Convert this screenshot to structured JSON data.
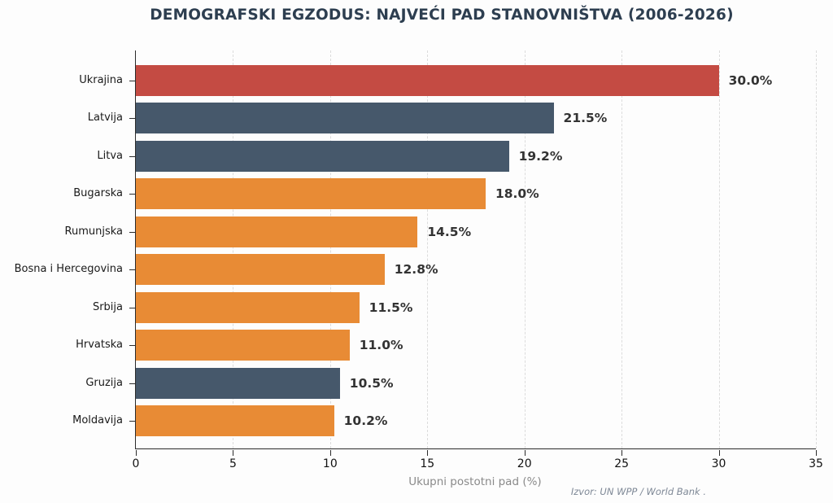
{
  "title": "DEMOGRAFSKI EGZODUS: NAJVEĆI PAD STANOVNIŠTVA (2006-2026)",
  "source_note": "Izvor: UN WPP / World Bank .",
  "chart_data": {
    "type": "bar",
    "orientation": "horizontal",
    "title": "DEMOGRAFSKI EGZODUS: NAJVEĆI PAD STANOVNIŠTVA (2006-2026)",
    "categories": [
      "Ukrajina",
      "Latvija",
      "Litva",
      "Bugarska",
      "Rumunjska",
      "Bosna i Hercegovina",
      "Srbija",
      "Hrvatska",
      "Gruzija",
      "Moldavija"
    ],
    "values": [
      30.0,
      21.5,
      19.2,
      18.0,
      14.5,
      12.8,
      11.5,
      11.0,
      10.5,
      10.2
    ],
    "value_labels": [
      "30.0%",
      "21.5%",
      "19.2%",
      "18.0%",
      "14.5%",
      "12.8%",
      "11.5%",
      "11.0%",
      "10.5%",
      "10.2%"
    ],
    "bar_colors": [
      "#c44b43",
      "#46586b",
      "#46586b",
      "#e88b35",
      "#e88b35",
      "#e88b35",
      "#e88b35",
      "#e88b35",
      "#46586b",
      "#e88b35"
    ],
    "xlabel": "Ukupni postotni pad (%)",
    "ylabel": "",
    "xlim": [
      0,
      35
    ],
    "xticks": [
      "0",
      "5",
      "10",
      "15",
      "20",
      "25",
      "30",
      "35"
    ],
    "grid": "vertical-dashed",
    "legend": "none",
    "accent_colors": {
      "red": "#c44b43",
      "slate": "#46586b",
      "orange": "#e88b35",
      "title": "#2d3e50",
      "gridline": "#dcdcdc"
    }
  }
}
